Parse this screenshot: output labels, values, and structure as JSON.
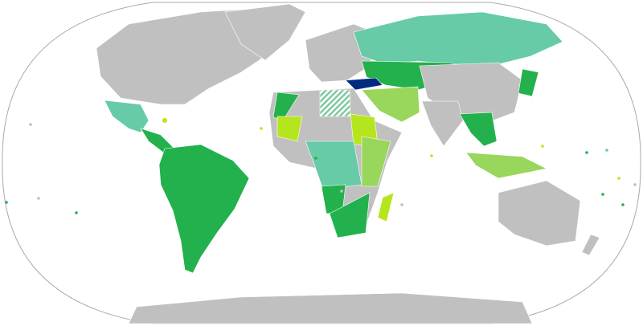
{
  "map": {
    "projection": "world-robinson-like",
    "colors": {
      "ocean": "#ffffff",
      "outline": "#aaaaaa",
      "no_data": "#c0c0c0",
      "dark_green": "#22b14c",
      "teal": "#66cba6",
      "light_green": "#99d65c",
      "yellow_green": "#b5e61d",
      "highlight": "#002b7f",
      "hatched": "#7fc9a0"
    },
    "highlighted_country": "Turkey",
    "regions": [
      {
        "name": "north-america",
        "category": "no_data"
      },
      {
        "name": "greenland",
        "category": "no_data"
      },
      {
        "name": "mexico",
        "category": "teal"
      },
      {
        "name": "central-america",
        "category": "dark_green"
      },
      {
        "name": "south-america",
        "category": "dark_green"
      },
      {
        "name": "europe",
        "category": "no_data"
      },
      {
        "name": "russia",
        "category": "teal"
      },
      {
        "name": "central-asia",
        "category": "dark_green"
      },
      {
        "name": "turkey",
        "category": "highlight"
      },
      {
        "name": "middle-east",
        "category": "light_green"
      },
      {
        "name": "china",
        "category": "no_data"
      },
      {
        "name": "india",
        "category": "no_data"
      },
      {
        "name": "southeast-asia",
        "category": "dark_green"
      },
      {
        "name": "japan",
        "category": "dark_green"
      },
      {
        "name": "indonesia",
        "category": "light_green"
      },
      {
        "name": "north-africa",
        "category": "no_data"
      },
      {
        "name": "morocco",
        "category": "dark_green"
      },
      {
        "name": "egypt",
        "category": "hatched"
      },
      {
        "name": "sudan",
        "category": "yellow_green"
      },
      {
        "name": "mali",
        "category": "yellow_green"
      },
      {
        "name": "central-africa",
        "category": "teal"
      },
      {
        "name": "east-africa",
        "category": "light_green"
      },
      {
        "name": "angola",
        "category": "dark_green"
      },
      {
        "name": "southern-africa",
        "category": "dark_green"
      },
      {
        "name": "madagascar",
        "category": "yellow_green"
      },
      {
        "name": "australia",
        "category": "no_data"
      },
      {
        "name": "new-zealand",
        "category": "no_data"
      },
      {
        "name": "antarctica",
        "category": "no_data"
      }
    ]
  }
}
